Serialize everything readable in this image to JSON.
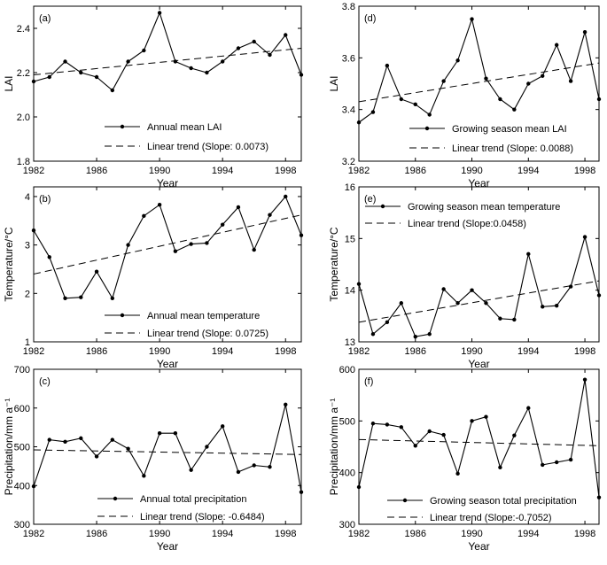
{
  "figure": {
    "panels_order": [
      "a",
      "d",
      "b",
      "e",
      "c",
      "f"
    ]
  },
  "chart_data": [
    {
      "id": "a",
      "type": "line",
      "panel_label": "(a)",
      "xlabel": "Year",
      "ylabel": "LAI",
      "xlim": [
        1982,
        1999
      ],
      "ylim": [
        1.8,
        2.5
      ],
      "xticks": [
        1982,
        1986,
        1990,
        1994,
        1998
      ],
      "xtick_labels": [
        "1982",
        "1986",
        "1990",
        "1994",
        "1998"
      ],
      "yticks": [
        1.8,
        2.0,
        2.2,
        2.4
      ],
      "ytick_labels": [
        "1.8",
        "2.0",
        "2.2",
        "2.4"
      ],
      "x": [
        1982,
        1983,
        1984,
        1985,
        1986,
        1987,
        1988,
        1989,
        1990,
        1991,
        1992,
        1993,
        1994,
        1995,
        1996,
        1997,
        1998,
        1999
      ],
      "series": [
        {
          "name": "Annual mean LAI",
          "style": "solid-marker",
          "values": [
            2.16,
            2.18,
            2.25,
            2.2,
            2.18,
            2.12,
            2.25,
            2.3,
            2.47,
            2.25,
            2.22,
            2.2,
            2.25,
            2.31,
            2.34,
            2.28,
            2.37,
            2.19
          ]
        }
      ],
      "trend": {
        "name": "Linear trend (Slope: 0.0073)",
        "style": "dashed",
        "y_start": 2.19,
        "y_end": 2.31
      },
      "legend": "bottom-right"
    },
    {
      "id": "d",
      "type": "line",
      "panel_label": "(d)",
      "xlabel": "Year",
      "ylabel": "LAI",
      "xlim": [
        1982,
        1999
      ],
      "ylim": [
        3.2,
        3.8
      ],
      "xticks": [
        1982,
        1986,
        1990,
        1994,
        1998
      ],
      "xtick_labels": [
        "1982",
        "1986",
        "1990",
        "1994",
        "1998"
      ],
      "yticks": [
        3.2,
        3.4,
        3.6,
        3.8
      ],
      "ytick_labels": [
        "3.2",
        "3.4",
        "3.6",
        "3.8"
      ],
      "x": [
        1982,
        1983,
        1984,
        1985,
        1986,
        1987,
        1988,
        1989,
        1990,
        1991,
        1992,
        1993,
        1994,
        1995,
        1996,
        1997,
        1998,
        1999
      ],
      "series": [
        {
          "name": "Growing season mean LAI",
          "style": "solid-marker",
          "values": [
            3.35,
            3.39,
            3.57,
            3.44,
            3.42,
            3.38,
            3.51,
            3.59,
            3.75,
            3.52,
            3.44,
            3.4,
            3.5,
            3.53,
            3.65,
            3.51,
            3.7,
            3.44
          ]
        }
      ],
      "trend": {
        "name": "Linear trend (Slope: 0.0088)",
        "style": "dashed",
        "y_start": 3.43,
        "y_end": 3.58
      },
      "legend": "bottom-right"
    },
    {
      "id": "b",
      "type": "line",
      "panel_label": "(b)",
      "xlabel": "Year",
      "ylabel": "Temperature/°C",
      "xlim": [
        1982,
        1999
      ],
      "ylim": [
        1,
        4.2
      ],
      "xticks": [
        1982,
        1986,
        1990,
        1994,
        1998
      ],
      "xtick_labels": [
        "1982",
        "1986",
        "1990",
        "1994",
        "1998"
      ],
      "yticks": [
        1,
        2,
        3,
        4
      ],
      "ytick_labels": [
        "1",
        "2",
        "3",
        "4"
      ],
      "x": [
        1982,
        1983,
        1984,
        1985,
        1986,
        1987,
        1988,
        1989,
        1990,
        1991,
        1992,
        1993,
        1994,
        1995,
        1996,
        1997,
        1998,
        1999
      ],
      "series": [
        {
          "name": "Annual mean temperature",
          "style": "solid-marker",
          "values": [
            3.3,
            2.75,
            1.9,
            1.92,
            2.45,
            1.9,
            3.0,
            3.6,
            3.83,
            2.87,
            3.02,
            3.04,
            3.42,
            3.78,
            2.9,
            3.62,
            4.0,
            3.2
          ]
        }
      ],
      "trend": {
        "name": "Linear trend (Slope: 0.0725)",
        "style": "dashed",
        "y_start": 2.4,
        "y_end": 3.62
      },
      "legend": "bottom-right"
    },
    {
      "id": "e",
      "type": "line",
      "panel_label": "(e)",
      "xlabel": "Year",
      "ylabel": "Temperature/°C",
      "xlim": [
        1982,
        1999
      ],
      "ylim": [
        13,
        16
      ],
      "xticks": [
        1982,
        1986,
        1990,
        1994,
        1998
      ],
      "xtick_labels": [
        "1982",
        "1986",
        "1990",
        "1994",
        "1998"
      ],
      "yticks": [
        13,
        14,
        15,
        16
      ],
      "ytick_labels": [
        "13",
        "14",
        "15",
        "16"
      ],
      "x": [
        1982,
        1983,
        1984,
        1985,
        1986,
        1987,
        1988,
        1989,
        1990,
        1991,
        1992,
        1993,
        1994,
        1995,
        1996,
        1997,
        1998,
        1999
      ],
      "series": [
        {
          "name": "Growing season mean temperature",
          "style": "solid-marker",
          "values": [
            14.12,
            13.15,
            13.38,
            13.75,
            13.1,
            13.15,
            14.02,
            13.75,
            14.0,
            13.75,
            13.45,
            13.43,
            14.7,
            13.68,
            13.7,
            14.07,
            15.03,
            13.9
          ]
        }
      ],
      "trend": {
        "name": "Linear trend (Slope:0.0458)",
        "style": "dashed",
        "y_start": 13.38,
        "y_end": 14.18
      },
      "legend": "top-right"
    },
    {
      "id": "c",
      "type": "line",
      "panel_label": "(c)",
      "xlabel": "Year",
      "ylabel": "Precipitation/mm a⁻¹",
      "xlim": [
        1982,
        1999
      ],
      "ylim": [
        300,
        700
      ],
      "xticks": [
        1982,
        1986,
        1990,
        1994,
        1998
      ],
      "xtick_labels": [
        "1982",
        "1986",
        "1990",
        "1994",
        "1998"
      ],
      "yticks": [
        300,
        400,
        500,
        600,
        700
      ],
      "ytick_labels": [
        "300",
        "400",
        "500",
        "600",
        "700"
      ],
      "x": [
        1982,
        1983,
        1984,
        1985,
        1986,
        1987,
        1988,
        1989,
        1990,
        1991,
        1992,
        1993,
        1994,
        1995,
        1996,
        1997,
        1998,
        1999
      ],
      "series": [
        {
          "name": "Annual total precipitation",
          "style": "solid-marker",
          "values": [
            398,
            518,
            513,
            522,
            475,
            518,
            495,
            425,
            535,
            535,
            440,
            500,
            553,
            435,
            452,
            448,
            609,
            383
          ]
        }
      ],
      "trend": {
        "name": "Linear trend (Slope: -0.6484)",
        "style": "dashed",
        "y_start": 492,
        "y_end": 480
      },
      "legend": "bottom-right"
    },
    {
      "id": "f",
      "type": "line",
      "panel_label": "(f)",
      "xlabel": "Year",
      "ylabel": "Precipitation/mm a⁻¹",
      "xlim": [
        1982,
        1999
      ],
      "ylim": [
        300,
        600
      ],
      "xticks": [
        1982,
        1986,
        1990,
        1994,
        1998
      ],
      "xtick_labels": [
        "1982",
        "1986",
        "1990",
        "1994",
        "1998"
      ],
      "yticks": [
        300,
        400,
        500,
        600
      ],
      "ytick_labels": [
        "300",
        "400",
        "500",
        "600"
      ],
      "x": [
        1982,
        1983,
        1984,
        1985,
        1986,
        1987,
        1988,
        1989,
        1990,
        1991,
        1992,
        1993,
        1994,
        1995,
        1996,
        1997,
        1998,
        1999
      ],
      "series": [
        {
          "name": "Growing season total precipitation",
          "style": "solid-marker",
          "values": [
            372,
            495,
            493,
            488,
            452,
            480,
            473,
            398,
            500,
            508,
            410,
            472,
            525,
            415,
            420,
            425,
            580,
            352
          ]
        }
      ],
      "trend": {
        "name": "Linear trend (Slope:-0.7052)",
        "style": "dashed",
        "y_start": 464,
        "y_end": 452
      },
      "legend": "bottom-right"
    }
  ]
}
